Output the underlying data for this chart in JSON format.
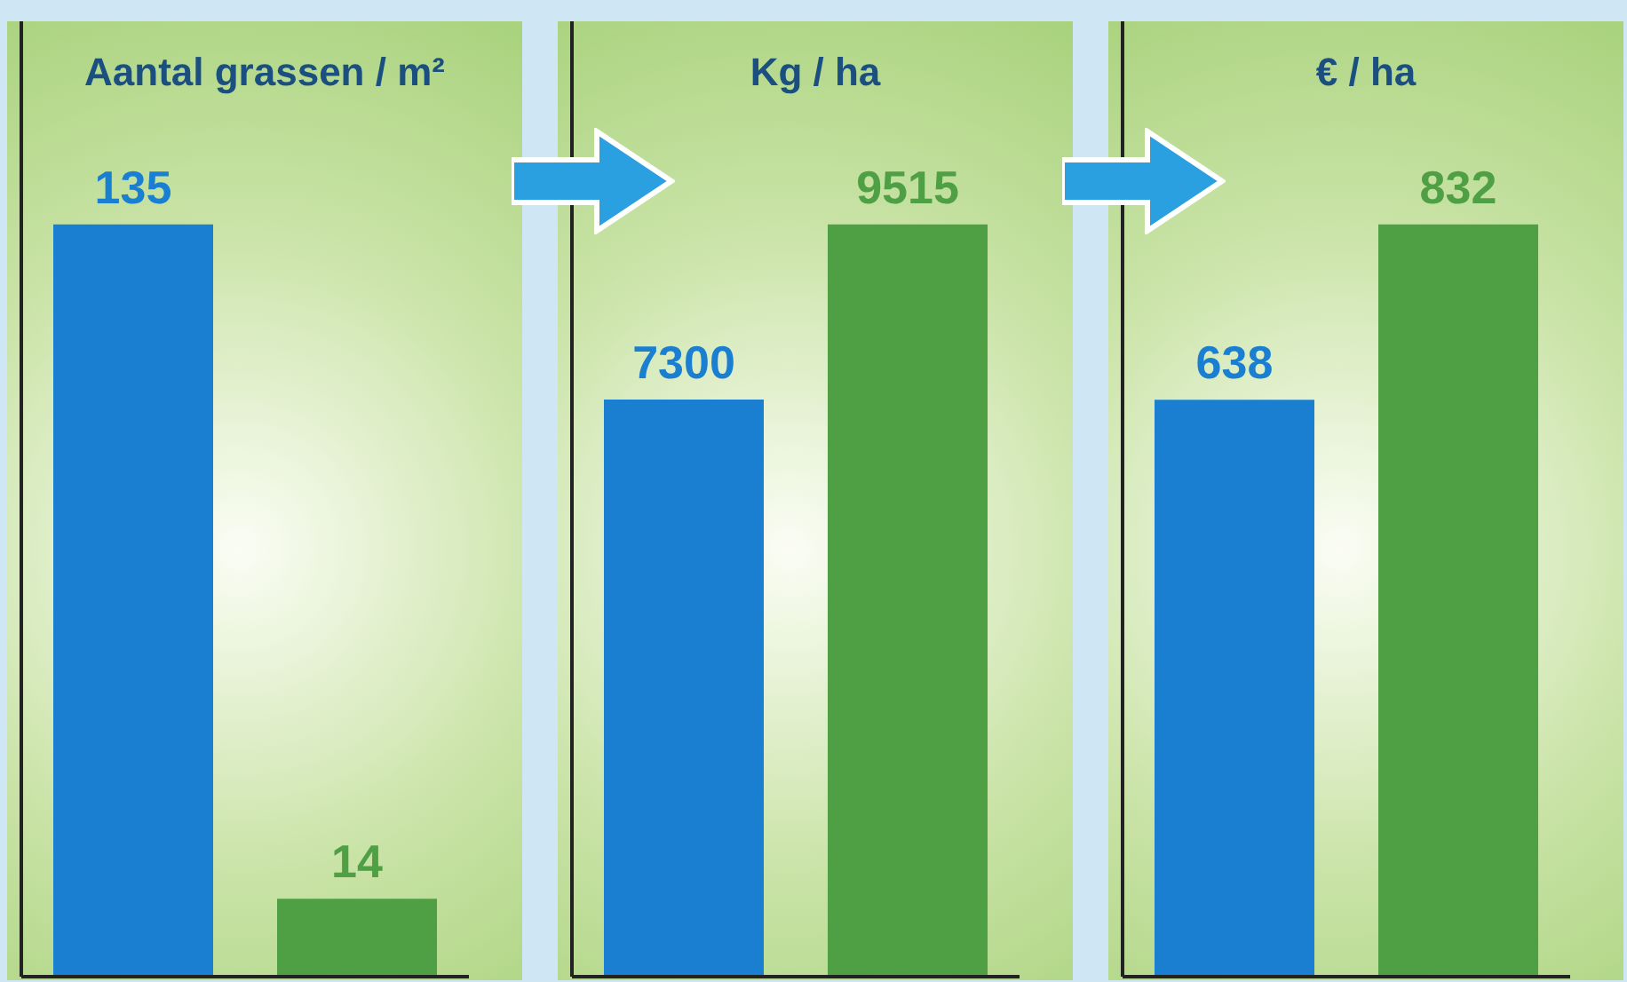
{
  "chart_data": [
    {
      "type": "bar",
      "title": "Aantal grassen / m²",
      "categories": [
        null,
        null
      ],
      "values": [
        135,
        14
      ],
      "colors": [
        "#1a7fd0",
        "#4f9f45"
      ],
      "data_labels": true
    },
    {
      "type": "bar",
      "title": "Kg / ha",
      "categories": [
        null,
        null
      ],
      "values": [
        7300,
        9515
      ],
      "colors": [
        "#1a7fd0",
        "#4f9f45"
      ],
      "data_labels": true
    },
    {
      "type": "bar",
      "title": "€ / ha",
      "categories": [
        null,
        null
      ],
      "values": [
        638,
        832
      ],
      "colors": [
        "#1a7fd0",
        "#4f9f45"
      ],
      "data_labels": true
    }
  ]
}
